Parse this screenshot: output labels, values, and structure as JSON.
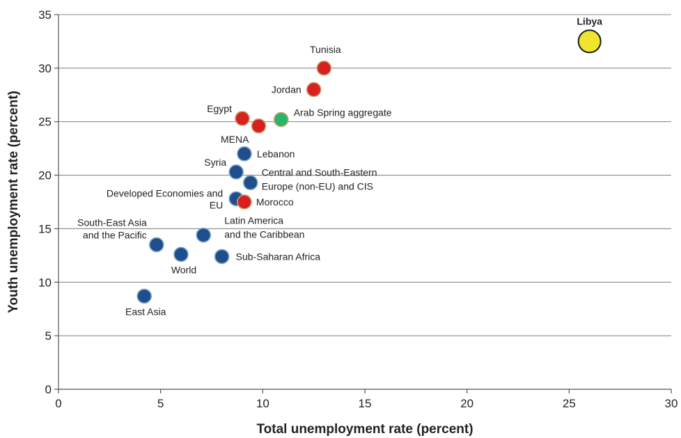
{
  "chart_data": {
    "type": "scatter",
    "xlabel": "Total unemployment rate (percent)",
    "ylabel": "Youth unemployment rate (percent)",
    "xlim": [
      0,
      30
    ],
    "ylim": [
      0,
      35
    ],
    "xticks": [
      0,
      5,
      10,
      15,
      20,
      25,
      30
    ],
    "yticks": [
      0,
      5,
      10,
      15,
      20,
      25,
      30,
      35
    ],
    "grid": "horizontal",
    "colors": {
      "arab_spring_country": "#d7211f",
      "aggregate": "#2ab36a",
      "other_region": "#1f4e8c",
      "libya": "#f0e52e"
    },
    "points": [
      {
        "label": [
          "Libya"
        ],
        "x": 26.0,
        "y": 32.5,
        "color": "#f0e52e",
        "size": "large",
        "bold": true
      },
      {
        "label": [
          "Tunisia"
        ],
        "x": 13.0,
        "y": 30.0,
        "color": "#d7211f"
      },
      {
        "label": [
          "Jordan"
        ],
        "x": 12.5,
        "y": 28.0,
        "color": "#d7211f"
      },
      {
        "label": [
          "Arab Spring aggregate"
        ],
        "x": 10.9,
        "y": 25.2,
        "color": "#2ab36a"
      },
      {
        "label": [
          "Egypt"
        ],
        "x": 9.0,
        "y": 25.3,
        "color": "#d7211f"
      },
      {
        "label": [
          "MENA"
        ],
        "x": 9.8,
        "y": 24.6,
        "color": "#d7211f"
      },
      {
        "label": [
          "Lebanon"
        ],
        "x": 9.1,
        "y": 22.0,
        "color": "#1f4e8c"
      },
      {
        "label": [
          "Syria"
        ],
        "x": 8.7,
        "y": 20.3,
        "color": "#1f4e8c"
      },
      {
        "label": [
          "Central and South-Eastern",
          "Europe (non-EU) and CIS"
        ],
        "x": 9.4,
        "y": 19.3,
        "color": "#1f4e8c"
      },
      {
        "label": [
          "Developed Economies and",
          "EU"
        ],
        "x": 8.7,
        "y": 17.8,
        "color": "#1f4e8c"
      },
      {
        "label": [
          "Morocco"
        ],
        "x": 9.1,
        "y": 17.5,
        "color": "#d7211f"
      },
      {
        "label": [
          "Latin America",
          "and the Caribbean"
        ],
        "x": 7.1,
        "y": 14.4,
        "color": "#1f4e8c"
      },
      {
        "label": [
          "South-East Asia",
          "and the Pacific"
        ],
        "x": 4.8,
        "y": 13.5,
        "color": "#1f4e8c"
      },
      {
        "label": [
          "World"
        ],
        "x": 6.0,
        "y": 12.6,
        "color": "#1f4e8c"
      },
      {
        "label": [
          "Sub-Saharan Africa"
        ],
        "x": 8.0,
        "y": 12.4,
        "color": "#1f4e8c"
      },
      {
        "label": [
          "East Asia"
        ],
        "x": 4.2,
        "y": 8.7,
        "color": "#1f4e8c"
      }
    ]
  }
}
